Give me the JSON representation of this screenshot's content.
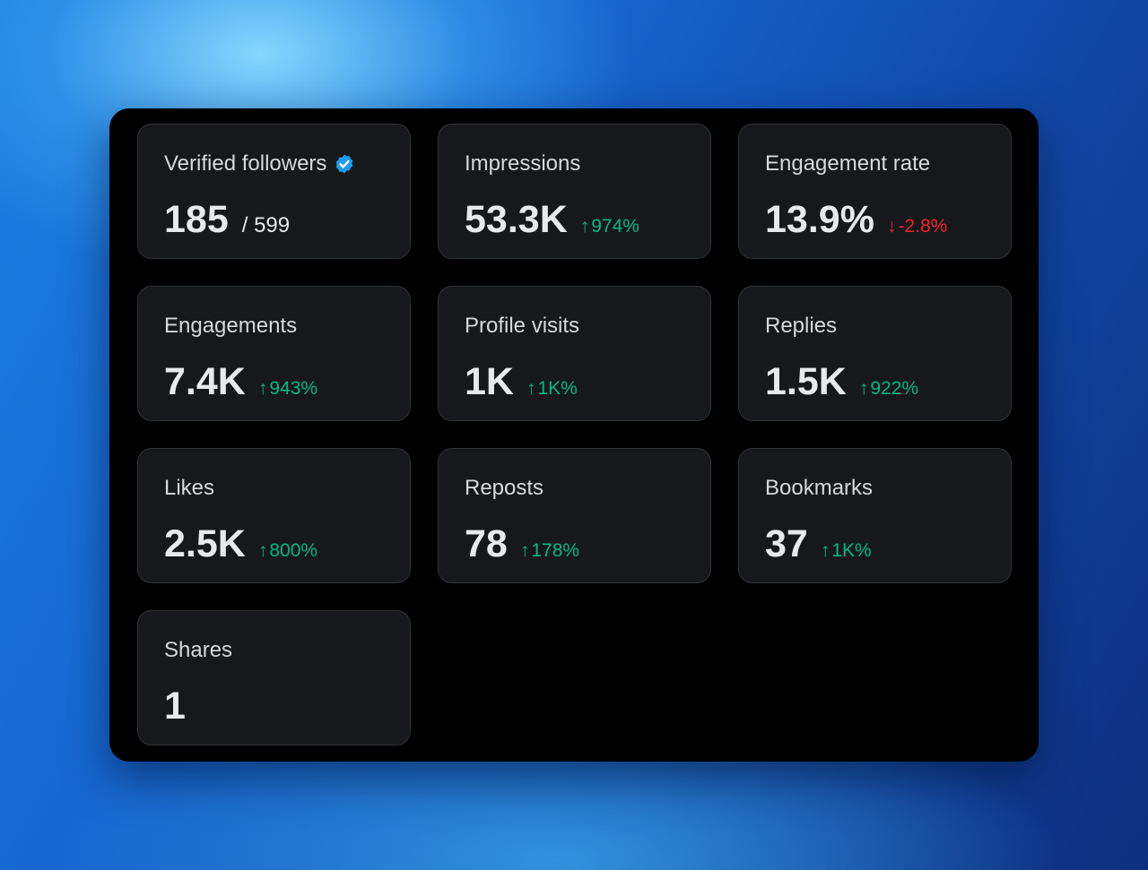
{
  "accent_colors": {
    "up": "#00ba7c",
    "down": "#f4212e",
    "verified": "#1d9bf0"
  },
  "cards": [
    {
      "label": "Verified followers",
      "value": "185",
      "suffix": "/ 599",
      "icon": "verified-badge-icon"
    },
    {
      "label": "Impressions",
      "value": "53.3K",
      "delta": "974%",
      "direction": "up",
      "delta_icon": "↑"
    },
    {
      "label": "Engagement rate",
      "value": "13.9%",
      "delta": "-2.8%",
      "direction": "down",
      "delta_icon": "↓"
    },
    {
      "label": "Engagements",
      "value": "7.4K",
      "delta": "943%",
      "direction": "up",
      "delta_icon": "↑"
    },
    {
      "label": "Profile visits",
      "value": "1K",
      "delta": "1K%",
      "direction": "up",
      "delta_icon": "↑"
    },
    {
      "label": "Replies",
      "value": "1.5K",
      "delta": "922%",
      "direction": "up",
      "delta_icon": "↑"
    },
    {
      "label": "Likes",
      "value": "2.5K",
      "delta": "800%",
      "direction": "up",
      "delta_icon": "↑"
    },
    {
      "label": "Reposts",
      "value": "78",
      "delta": "178%",
      "direction": "up",
      "delta_icon": "↑"
    },
    {
      "label": "Bookmarks",
      "value": "37",
      "delta": "1K%",
      "direction": "up",
      "delta_icon": "↑"
    },
    {
      "label": "Shares",
      "value": "1"
    }
  ]
}
